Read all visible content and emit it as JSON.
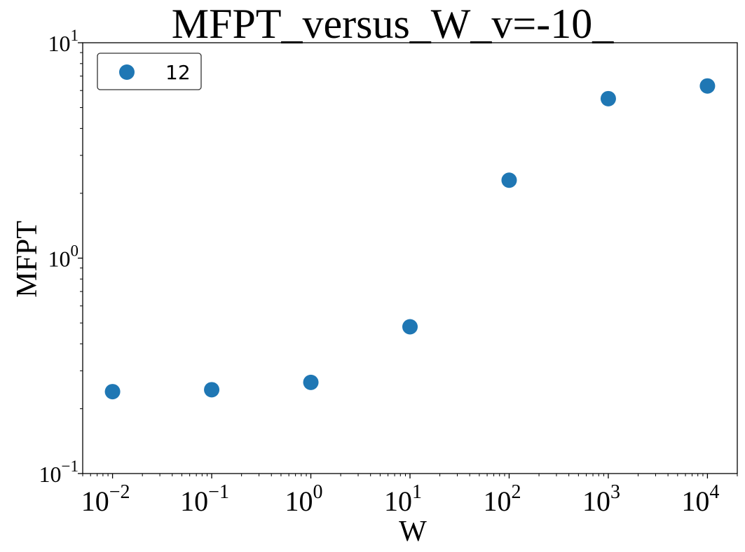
{
  "chart_data": {
    "type": "scatter",
    "title": "MFPT_versus_W_v=-10_",
    "xlabel": "W",
    "ylabel": "MFPT",
    "xscale": "log",
    "yscale": "log",
    "xlim": [
      0.005,
      20000
    ],
    "ylim": [
      0.1,
      10
    ],
    "x_ticks": [
      {
        "value": 0.01,
        "base": "10",
        "exp": "−2"
      },
      {
        "value": 0.1,
        "base": "10",
        "exp": "−1"
      },
      {
        "value": 1,
        "base": "10",
        "exp": "0"
      },
      {
        "value": 10,
        "base": "10",
        "exp": "1"
      },
      {
        "value": 100,
        "base": "10",
        "exp": "2"
      },
      {
        "value": 1000,
        "base": "10",
        "exp": "3"
      },
      {
        "value": 10000,
        "base": "10",
        "exp": "4"
      }
    ],
    "y_ticks": [
      {
        "value": 0.1,
        "base": "10",
        "exp": "−1"
      },
      {
        "value": 1,
        "base": "10",
        "exp": "0"
      },
      {
        "value": 10,
        "base": "10",
        "exp": "1"
      }
    ],
    "grid": false,
    "legend_position": "upper-left",
    "series": [
      {
        "name": "12",
        "color": "#1f77b4",
        "x": [
          0.01,
          0.1,
          1,
          10,
          100,
          1000,
          10000
        ],
        "y": [
          0.24,
          0.245,
          0.265,
          0.48,
          2.3,
          5.5,
          6.3
        ]
      }
    ]
  }
}
